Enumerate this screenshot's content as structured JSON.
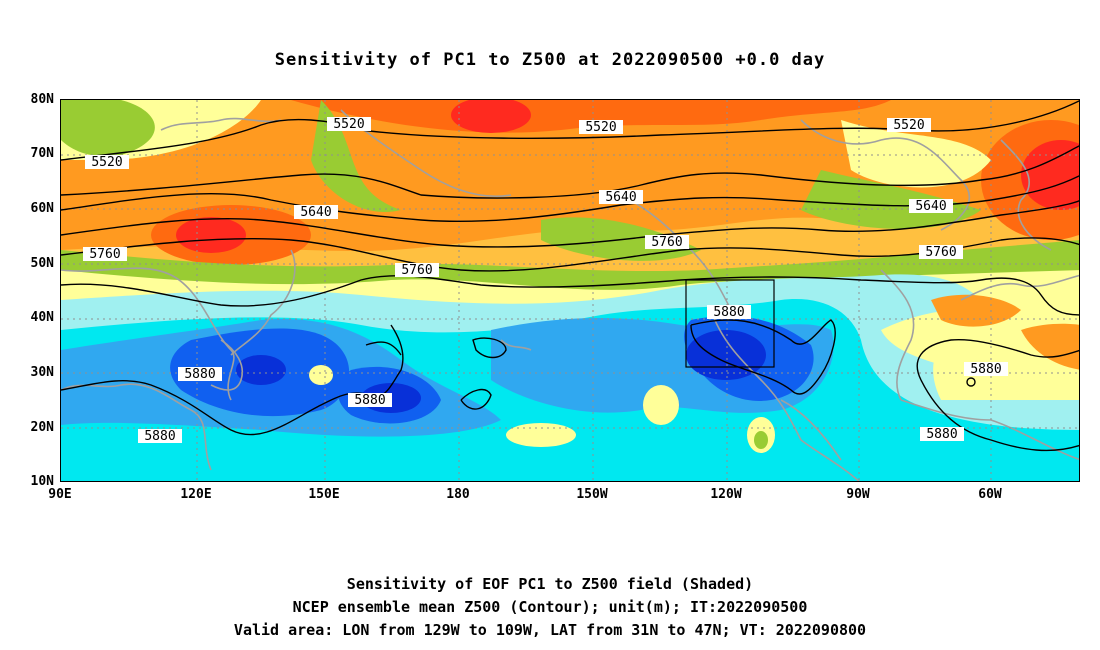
{
  "title": "Sensitivity of PC1 to Z500 at 2022090500 +0.0 day",
  "lat_labels": [
    "80N",
    "70N",
    "60N",
    "50N",
    "40N",
    "30N",
    "20N",
    "10N"
  ],
  "lon_labels": [
    "90E",
    "120E",
    "150E",
    "180",
    "150W",
    "120W",
    "90W",
    "60W"
  ],
  "contour_labels": [
    "5520",
    "5520",
    "5520",
    "5520",
    "5640",
    "5640",
    "5640",
    "5760",
    "5760",
    "5760",
    "5760",
    "5880",
    "5880",
    "5880",
    "5880",
    "5880",
    "5880"
  ],
  "captions": [
    "Sensitivity of EOF PC1 to Z500 field (Shaded)",
    "NCEP ensemble mean Z500 (Contour); unit(m); IT:2022090500",
    "Valid area: LON from 129W to 109W, LAT from 31N to 47N; VT: 2022090800"
  ],
  "colors": {
    "red": "#ff2a1f",
    "orange_red": "#ff6a10",
    "orange": "#ff9a20",
    "light_orange": "#ffc040",
    "yellow": "#ffff99",
    "green": "#99cc33",
    "light_cyan": "#a0f0f0",
    "cyan": "#00e8f0",
    "sky": "#30a8f0",
    "blue": "#1060f0",
    "deep_blue": "#0830d8",
    "coast": "#a0a0a0"
  }
}
